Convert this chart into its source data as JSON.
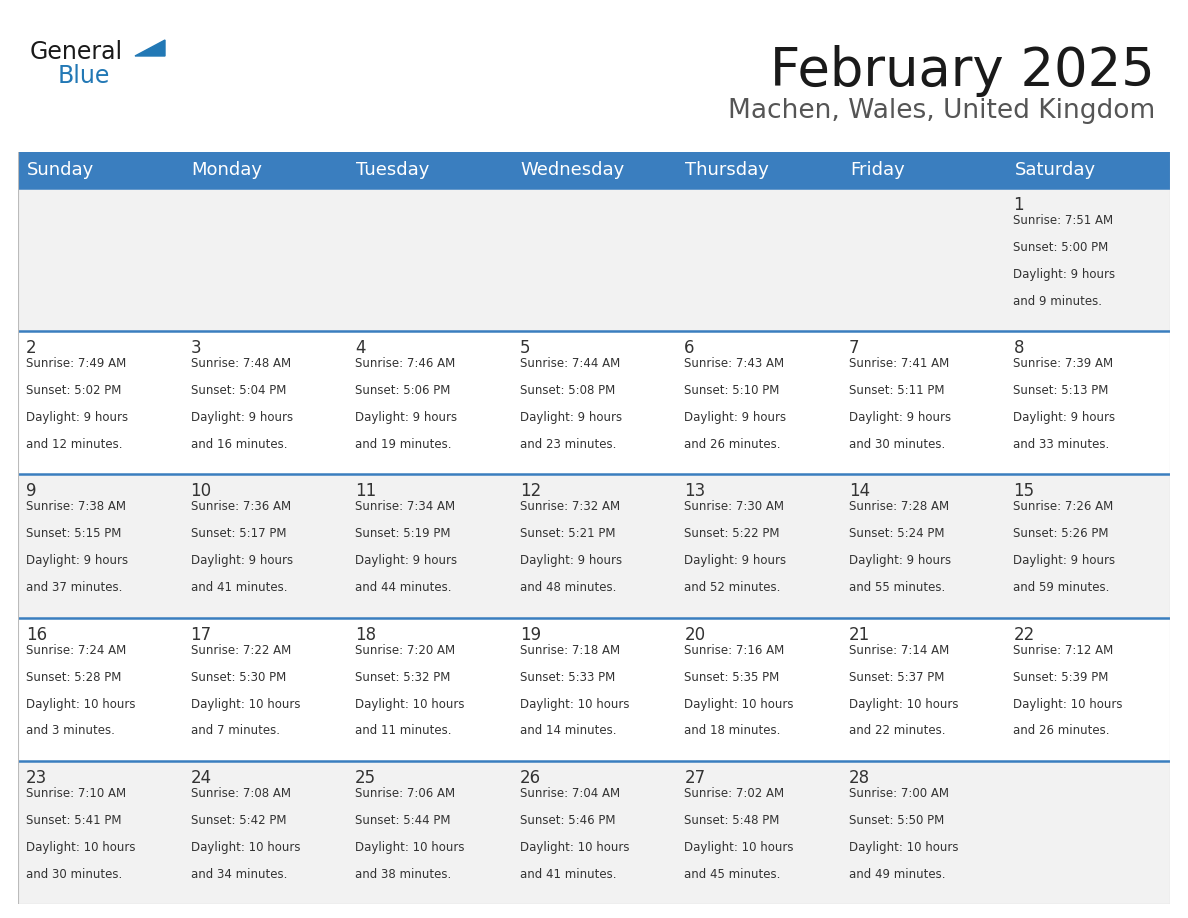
{
  "title": "February 2025",
  "subtitle": "Machen, Wales, United Kingdom",
  "days_of_week": [
    "Sunday",
    "Monday",
    "Tuesday",
    "Wednesday",
    "Thursday",
    "Friday",
    "Saturday"
  ],
  "header_bg": "#3a7ebf",
  "header_text": "#ffffff",
  "row_bg": [
    "#f2f2f2",
    "#ffffff",
    "#f2f2f2",
    "#ffffff",
    "#f2f2f2"
  ],
  "separator_color": "#3a7ebf",
  "text_color": "#333333",
  "calendar_data": [
    [
      null,
      null,
      null,
      null,
      null,
      null,
      {
        "day": 1,
        "sunrise": "7:51 AM",
        "sunset": "5:00 PM",
        "daylight": "9 hours",
        "daylight2": "and 9 minutes."
      }
    ],
    [
      {
        "day": 2,
        "sunrise": "7:49 AM",
        "sunset": "5:02 PM",
        "daylight": "9 hours",
        "daylight2": "and 12 minutes."
      },
      {
        "day": 3,
        "sunrise": "7:48 AM",
        "sunset": "5:04 PM",
        "daylight": "9 hours",
        "daylight2": "and 16 minutes."
      },
      {
        "day": 4,
        "sunrise": "7:46 AM",
        "sunset": "5:06 PM",
        "daylight": "9 hours",
        "daylight2": "and 19 minutes."
      },
      {
        "day": 5,
        "sunrise": "7:44 AM",
        "sunset": "5:08 PM",
        "daylight": "9 hours",
        "daylight2": "and 23 minutes."
      },
      {
        "day": 6,
        "sunrise": "7:43 AM",
        "sunset": "5:10 PM",
        "daylight": "9 hours",
        "daylight2": "and 26 minutes."
      },
      {
        "day": 7,
        "sunrise": "7:41 AM",
        "sunset": "5:11 PM",
        "daylight": "9 hours",
        "daylight2": "and 30 minutes."
      },
      {
        "day": 8,
        "sunrise": "7:39 AM",
        "sunset": "5:13 PM",
        "daylight": "9 hours",
        "daylight2": "and 33 minutes."
      }
    ],
    [
      {
        "day": 9,
        "sunrise": "7:38 AM",
        "sunset": "5:15 PM",
        "daylight": "9 hours",
        "daylight2": "and 37 minutes."
      },
      {
        "day": 10,
        "sunrise": "7:36 AM",
        "sunset": "5:17 PM",
        "daylight": "9 hours",
        "daylight2": "and 41 minutes."
      },
      {
        "day": 11,
        "sunrise": "7:34 AM",
        "sunset": "5:19 PM",
        "daylight": "9 hours",
        "daylight2": "and 44 minutes."
      },
      {
        "day": 12,
        "sunrise": "7:32 AM",
        "sunset": "5:21 PM",
        "daylight": "9 hours",
        "daylight2": "and 48 minutes."
      },
      {
        "day": 13,
        "sunrise": "7:30 AM",
        "sunset": "5:22 PM",
        "daylight": "9 hours",
        "daylight2": "and 52 minutes."
      },
      {
        "day": 14,
        "sunrise": "7:28 AM",
        "sunset": "5:24 PM",
        "daylight": "9 hours",
        "daylight2": "and 55 minutes."
      },
      {
        "day": 15,
        "sunrise": "7:26 AM",
        "sunset": "5:26 PM",
        "daylight": "9 hours",
        "daylight2": "and 59 minutes."
      }
    ],
    [
      {
        "day": 16,
        "sunrise": "7:24 AM",
        "sunset": "5:28 PM",
        "daylight": "10 hours",
        "daylight2": "and 3 minutes."
      },
      {
        "day": 17,
        "sunrise": "7:22 AM",
        "sunset": "5:30 PM",
        "daylight": "10 hours",
        "daylight2": "and 7 minutes."
      },
      {
        "day": 18,
        "sunrise": "7:20 AM",
        "sunset": "5:32 PM",
        "daylight": "10 hours",
        "daylight2": "and 11 minutes."
      },
      {
        "day": 19,
        "sunrise": "7:18 AM",
        "sunset": "5:33 PM",
        "daylight": "10 hours",
        "daylight2": "and 14 minutes."
      },
      {
        "day": 20,
        "sunrise": "7:16 AM",
        "sunset": "5:35 PM",
        "daylight": "10 hours",
        "daylight2": "and 18 minutes."
      },
      {
        "day": 21,
        "sunrise": "7:14 AM",
        "sunset": "5:37 PM",
        "daylight": "10 hours",
        "daylight2": "and 22 minutes."
      },
      {
        "day": 22,
        "sunrise": "7:12 AM",
        "sunset": "5:39 PM",
        "daylight": "10 hours",
        "daylight2": "and 26 minutes."
      }
    ],
    [
      {
        "day": 23,
        "sunrise": "7:10 AM",
        "sunset": "5:41 PM",
        "daylight": "10 hours",
        "daylight2": "and 30 minutes."
      },
      {
        "day": 24,
        "sunrise": "7:08 AM",
        "sunset": "5:42 PM",
        "daylight": "10 hours",
        "daylight2": "and 34 minutes."
      },
      {
        "day": 25,
        "sunrise": "7:06 AM",
        "sunset": "5:44 PM",
        "daylight": "10 hours",
        "daylight2": "and 38 minutes."
      },
      {
        "day": 26,
        "sunrise": "7:04 AM",
        "sunset": "5:46 PM",
        "daylight": "10 hours",
        "daylight2": "and 41 minutes."
      },
      {
        "day": 27,
        "sunrise": "7:02 AM",
        "sunset": "5:48 PM",
        "daylight": "10 hours",
        "daylight2": "and 45 minutes."
      },
      {
        "day": 28,
        "sunrise": "7:00 AM",
        "sunset": "5:50 PM",
        "daylight": "10 hours",
        "daylight2": "and 49 minutes."
      },
      null
    ]
  ]
}
